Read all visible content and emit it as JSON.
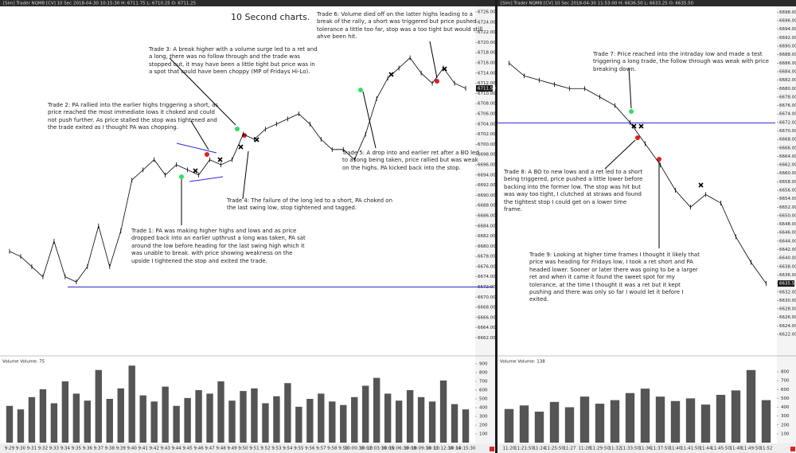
{
  "header": {
    "left": "[Sim] Trader  NQM8 [CV] 10 Sec  2018-04-30 10:15:30 H: 6711.75 L: 6710.25 O: 6711.25",
    "right": "[Sim] Trader  NQM8 [CV] 10 Sec  2018-04-30 11:53:00 H: 6636.50 L: 6633.25 O: 6635.50"
  },
  "title": "10 Second charts.",
  "notes": {
    "trade1": "Trade 1:  PA was making higher highs and lows and as price dropped back into an earlier upthrust a long was taken, PA sat around the low before heading for the last swing high which it was unable to break. with price showing weakness on the upside I tightened the stop and exited the trade.",
    "trade2": "Trade 2:  PA rallied into the earlier highs triggering a short, as price reached the most immediate lows it choked and could not push further.  As price stalled the stop was tightened and the trade exited as I thought PA was chopping.",
    "trade3": "Trade 3:  A break higher with a volume surge led to a ret and a long, there was no follow through and the trade was stopped out, it may have been a little tight but price was in a spot that could have been choppy (MP of Fridays Hi-Lo).",
    "trade4": "Trade 4:  The failure of the long led to a short, PA choked on the last swing low, stop tightened and tagged.",
    "trade5": "Trade 5:  A drop into and earlier ret after a BO led to a long being taken, price rallied but was weak on the highs.  PA kicked back into the stop.",
    "trade6": "Trade 6:  Volume died off on the latter highs leading to a break of the rally, a short was triggered but price pushed tolerance a little too far, stop was a too tight but would still ahve been hit.",
    "trade7": "Trade 7:  Price reached into the intraday low and made a test triggering a long trade, the follow through was weak with price breaking down.",
    "trade8": "Trade 8:  A BO to new lows and a ret led to a short being triggered, price pushed a little lower before backing into the former low.  The stop was hit but was way too tight, I clutched at straws and found the tightest stop I could get on a lower time frame.",
    "trade9": "Trade 9:  Looking at higher time frames I thought it likely that price was heading for Fridays low, I took a ret short and PA headed lower.  Sooner or later there was going to be a larger ret and when it came it found the sweet spot for my tolerance, at the time I thought it was a ret but it kept pushing and there was only so far I would let it before I exited."
  },
  "chart_data": [
    {
      "type": "line",
      "color": "#000000",
      "level": 6672,
      "level_color": "#2a2ad0",
      "last_label": "6711.50",
      "categories": [
        "9:29",
        "9:30",
        "9:31",
        "9:32",
        "9:33",
        "9:34",
        "9:35",
        "9:36",
        "9:37",
        "9:38",
        "9:39",
        "9:40",
        "9:41",
        "9:42",
        "9:43",
        "9:44",
        "9:45",
        "9:46",
        "9:47",
        "9:48",
        "9:49",
        "9:50",
        "9:51",
        "9:52",
        "9:53",
        "9:54",
        "9:55",
        "9:56",
        "9:57",
        "9:58",
        "9:59",
        "10:00:30",
        "10:02",
        "10:03:30",
        "10:05",
        "10:06:30",
        "10:08",
        "10:09:30",
        "10:11",
        "10:12:30",
        "10:14",
        "10:15:30"
      ],
      "values": [
        6679,
        6678,
        6676,
        6674,
        6681,
        6674,
        6673,
        6676,
        6684,
        6676,
        6683,
        6693,
        6695,
        6697,
        6694,
        6696,
        6695,
        6694,
        6697,
        6696,
        6697,
        6702,
        6701,
        6703,
        6704,
        6705,
        6706,
        6704,
        6701,
        6699,
        6699,
        6697,
        6702,
        6709,
        6713,
        6715,
        6717,
        6714,
        6712,
        6715,
        6712,
        6711
      ],
      "ylim": [
        6658.8,
        6727.1
      ],
      "yticks": [
        {
          "value": 6662,
          "label": "6662.00"
        },
        {
          "value": 6664,
          "label": "6664.00"
        },
        {
          "value": 6666,
          "label": "6666.00"
        },
        {
          "value": 6668,
          "label": "6668.00"
        },
        {
          "value": 6670,
          "label": "6670.00"
        },
        {
          "value": 6672,
          "label": "6672.00"
        },
        {
          "value": 6674,
          "label": "6674.00"
        },
        {
          "value": 6676,
          "label": "6676.00"
        },
        {
          "value": 6678,
          "label": "6678.00"
        },
        {
          "value": 6680,
          "label": "6680.00"
        },
        {
          "value": 6682,
          "label": "6682.00"
        },
        {
          "value": 6684,
          "label": "6684.00"
        },
        {
          "value": 6686,
          "label": "6686.00"
        },
        {
          "value": 6688,
          "label": "6688.00"
        },
        {
          "value": 6690,
          "label": "6690.00"
        },
        {
          "value": 6692,
          "label": "6692.00"
        },
        {
          "value": 6694,
          "label": "6694.00"
        },
        {
          "value": 6696,
          "label": "6696.00"
        },
        {
          "value": 6698,
          "label": "6698.00"
        },
        {
          "value": 6700,
          "label": "6700.00"
        },
        {
          "value": 6702,
          "label": "6702.00"
        },
        {
          "value": 6704,
          "label": "6704.00"
        },
        {
          "value": 6706,
          "label": "6706.00"
        },
        {
          "value": 6708,
          "label": "6708.00"
        },
        {
          "value": 6710,
          "label": "6710.00"
        },
        {
          "value": 6712,
          "label": "6712.00"
        },
        {
          "value": 6714,
          "label": "6714.00"
        },
        {
          "value": 6716,
          "label": "6716.00"
        },
        {
          "value": 6718,
          "label": "6718.00"
        },
        {
          "value": 6720,
          "label": "6720.00"
        },
        {
          "value": 6722,
          "label": "6722.00"
        },
        {
          "value": 6724,
          "label": "6724.00"
        },
        {
          "value": 6726,
          "label": "6726.00"
        }
      ],
      "volume": {
        "label": "Volume  Volume: 75",
        "color": "#555555",
        "values": [
          420,
          380,
          520,
          610,
          450,
          700,
          560,
          480,
          830,
          500,
          620,
          880,
          540,
          470,
          640,
          420,
          510,
          600,
          560,
          700,
          480,
          590,
          620,
          450,
          530,
          680,
          410,
          500,
          560,
          470,
          430,
          520,
          650,
          740,
          560,
          480,
          600,
          520,
          470,
          710,
          440,
          380
        ],
        "ylim": [
          0,
          964
        ],
        "yticks": [
          100,
          200,
          300,
          400,
          500,
          600,
          700,
          800,
          900
        ]
      }
    },
    {
      "type": "line",
      "color": "#000000",
      "level": 6671.9,
      "level_color": "#2a2ad0",
      "last_label": "6635.50",
      "categories": [
        "11:20",
        "11:21:50",
        "11:24",
        "11:25:50",
        "11:27",
        "11:28",
        "11:29:50",
        "11:32",
        "11:33:50",
        "11:36",
        "11:37:50",
        "11:40",
        "11:41:50",
        "11:44",
        "11:45:50",
        "11:48",
        "11:49:50",
        "11:52"
      ],
      "values": [
        6686,
        6683,
        6682,
        6681,
        6680,
        6680,
        6678,
        6676,
        6672,
        6667,
        6662,
        6656,
        6652,
        6655,
        6653,
        6645,
        6639,
        6634
      ],
      "ylim": [
        6617.3,
        6699.4
      ],
      "yticks": [
        {
          "value": 6622,
          "label": "6622.00"
        },
        {
          "value": 6624,
          "label": "6624.00"
        },
        {
          "value": 6626,
          "label": "6626.00"
        },
        {
          "value": 6628,
          "label": "6628.00"
        },
        {
          "value": 6630,
          "label": "6630.00"
        },
        {
          "value": 6632,
          "label": "6632.00"
        },
        {
          "value": 6634,
          "label": "6634.00"
        },
        {
          "value": 6636,
          "label": "6636.00"
        },
        {
          "value": 6638,
          "label": "6638.00"
        },
        {
          "value": 6640,
          "label": "6640.00"
        },
        {
          "value": 6642,
          "label": "6642.00"
        },
        {
          "value": 6644,
          "label": "6644.00"
        },
        {
          "value": 6646,
          "label": "6646.00"
        },
        {
          "value": 6648,
          "label": "6648.00"
        },
        {
          "value": 6650,
          "label": "6650.00"
        },
        {
          "value": 6652,
          "label": "6652.00"
        },
        {
          "value": 6654,
          "label": "6654.00"
        },
        {
          "value": 6656,
          "label": "6656.00"
        },
        {
          "value": 6658,
          "label": "6658.00"
        },
        {
          "value": 6660,
          "label": "6660.00"
        },
        {
          "value": 6662,
          "label": "6662.00"
        },
        {
          "value": 6664,
          "label": "6664.00"
        },
        {
          "value": 6666,
          "label": "6666.00"
        },
        {
          "value": 6668,
          "label": "6668.00"
        },
        {
          "value": 6670,
          "label": "6670.00"
        },
        {
          "value": 6672,
          "label": "6672.00"
        },
        {
          "value": 6674,
          "label": "6674.00"
        },
        {
          "value": 6676,
          "label": "6676.00"
        },
        {
          "value": 6678,
          "label": "6678.00"
        },
        {
          "value": 6680,
          "label": "6680.00"
        },
        {
          "value": 6682,
          "label": "6682.00"
        },
        {
          "value": 6684,
          "label": "6684.00"
        },
        {
          "value": 6686,
          "label": "6686.00"
        },
        {
          "value": 6688,
          "label": "6688.00"
        },
        {
          "value": 6690,
          "label": "6690.00"
        },
        {
          "value": 6692,
          "label": "6692.00"
        },
        {
          "value": 6694,
          "label": "6694.00"
        },
        {
          "value": 6696,
          "label": "6696.00"
        },
        {
          "value": 6698,
          "label": "6698.00"
        }
      ],
      "volume": {
        "label": "Volume  Volume: 138",
        "color": "#555555",
        "values": [
          380,
          420,
          350,
          460,
          400,
          520,
          440,
          480,
          560,
          610,
          520,
          470,
          500,
          430,
          540,
          590,
          820,
          480
        ],
        "ylim": [
          0,
          953
        ],
        "yticks": [
          100,
          200,
          300,
          400,
          500,
          600,
          700,
          800
        ]
      }
    }
  ]
}
